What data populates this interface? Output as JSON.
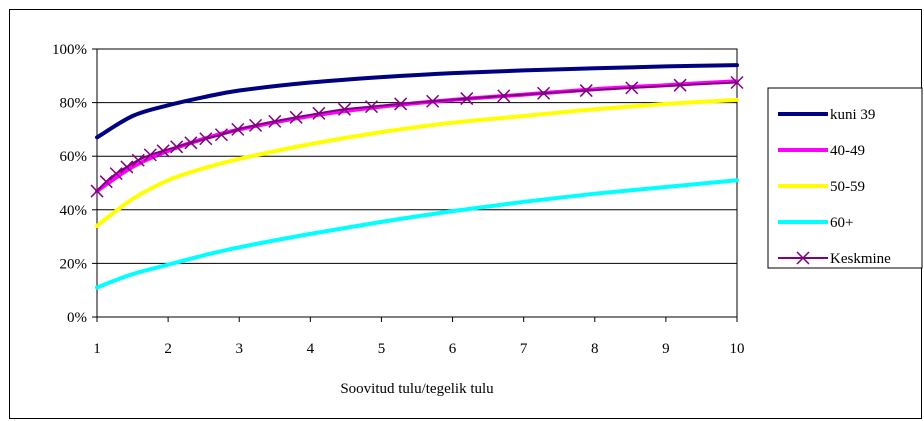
{
  "chart_data": {
    "type": "line",
    "title": "",
    "xlabel": "Soovitud tulu/tegelik tulu",
    "ylabel": "",
    "xlim": [
      1,
      10
    ],
    "ylim": [
      0,
      1
    ],
    "x_ticks": [
      1,
      2,
      3,
      4,
      5,
      6,
      7,
      8,
      9,
      10
    ],
    "x_tick_labels": [
      "1",
      "2",
      "3",
      "4",
      "5",
      "6",
      "7",
      "8",
      "9",
      "10"
    ],
    "y_ticks": [
      0,
      0.2,
      0.4,
      0.6,
      0.8,
      1.0
    ],
    "y_tick_labels": [
      "0%",
      "20%",
      "40%",
      "60%",
      "80%",
      "100%"
    ],
    "grid": "horizontal",
    "legend_position": "right",
    "series": [
      {
        "name": "kuni 39",
        "color": "#000080",
        "x": [
          1,
          1.5,
          2,
          2.5,
          3,
          4,
          5,
          6,
          7,
          8,
          9,
          10
        ],
        "y": [
          0.67,
          0.75,
          0.79,
          0.82,
          0.845,
          0.875,
          0.895,
          0.91,
          0.92,
          0.928,
          0.935,
          0.94
        ]
      },
      {
        "name": "40-49",
        "color": "#ff00ff",
        "x": [
          1,
          1.5,
          2,
          2.5,
          3,
          4,
          5,
          6,
          7,
          8,
          9,
          10
        ],
        "y": [
          0.47,
          0.56,
          0.62,
          0.665,
          0.7,
          0.75,
          0.785,
          0.81,
          0.83,
          0.85,
          0.865,
          0.88
        ]
      },
      {
        "name": "50-59",
        "color": "#ffff00",
        "x": [
          1,
          1.5,
          2,
          2.5,
          3,
          4,
          5,
          6,
          7,
          8,
          9,
          10
        ],
        "y": [
          0.34,
          0.44,
          0.51,
          0.555,
          0.59,
          0.645,
          0.69,
          0.725,
          0.75,
          0.775,
          0.795,
          0.81
        ]
      },
      {
        "name": "60+",
        "color": "#00ffff",
        "x": [
          1,
          1.5,
          2,
          2.5,
          3,
          4,
          5,
          6,
          7,
          8,
          9,
          10
        ],
        "y": [
          0.11,
          0.16,
          0.195,
          0.23,
          0.26,
          0.31,
          0.355,
          0.395,
          0.43,
          0.46,
          0.485,
          0.51
        ]
      },
      {
        "name": "Keskmine",
        "color": "#800080",
        "marker": "x",
        "x": [
          1,
          1.13,
          1.27,
          1.42,
          1.58,
          1.75,
          1.93,
          2.12,
          2.32,
          2.53,
          2.75,
          2.98,
          3.23,
          3.5,
          3.8,
          4.12,
          4.48,
          4.86,
          5.27,
          5.72,
          6.2,
          6.72,
          7.28,
          7.88,
          8.52,
          9.2,
          10
        ],
        "y": [
          0.47,
          0.505,
          0.535,
          0.56,
          0.585,
          0.605,
          0.62,
          0.635,
          0.65,
          0.665,
          0.68,
          0.7,
          0.715,
          0.73,
          0.745,
          0.76,
          0.775,
          0.785,
          0.795,
          0.805,
          0.815,
          0.825,
          0.835,
          0.845,
          0.855,
          0.865,
          0.875
        ]
      }
    ]
  }
}
